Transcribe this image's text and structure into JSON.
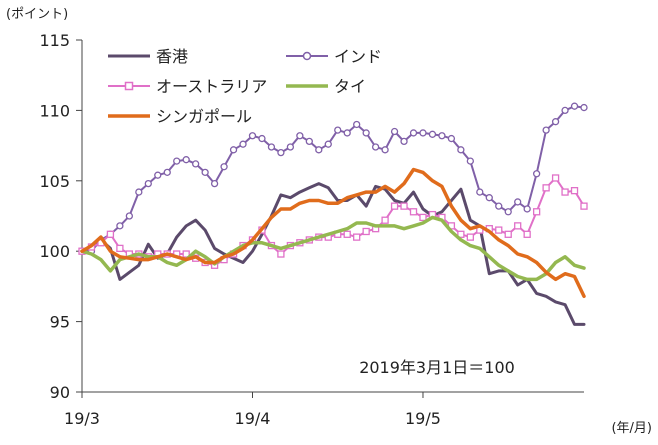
{
  "chart_data": {
    "type": "line",
    "title": "",
    "unit_label": "(ポイント)",
    "x_unit_label": "(年/月)",
    "annotation": "2019年3月1日＝100",
    "xlabel": "",
    "ylabel": "",
    "ylim": [
      90,
      115
    ],
    "yticks": [
      90,
      95,
      100,
      105,
      110,
      115
    ],
    "xlim": [
      0,
      53
    ],
    "xticks": [
      {
        "label": "19/3",
        "x": 0
      },
      {
        "label": "19/4",
        "x": 18
      },
      {
        "label": "19/5",
        "x": 36
      }
    ],
    "grid": false,
    "legend": [
      {
        "name": "香港",
        "color": "#5b4a6b",
        "marker": "none"
      },
      {
        "name": "インド",
        "color": "#8060a8",
        "marker": "circle"
      },
      {
        "name": "オーストラリア",
        "color": "#e070c8",
        "marker": "square"
      },
      {
        "name": "タイ",
        "color": "#94b850",
        "marker": "none"
      },
      {
        "name": "シンガポール",
        "color": "#e06c1c",
        "marker": "none"
      }
    ],
    "series": [
      {
        "name": "香港",
        "color": "#5b4a6b",
        "width": 3,
        "marker": "none",
        "values": [
          100,
          100.3,
          100.8,
          100.2,
          98,
          98.5,
          99,
          100.5,
          99.5,
          99.8,
          101,
          101.8,
          102.2,
          101.5,
          100.2,
          99.8,
          99.5,
          99.2,
          100,
          101.2,
          102.5,
          104,
          103.8,
          104.2,
          104.5,
          104.8,
          104.5,
          103.6,
          103.6,
          104,
          103.2,
          104.6,
          104.4,
          103.6,
          103.4,
          104.2,
          103,
          102.5,
          102.8,
          103.6,
          104.4,
          102.2,
          101.8,
          98.4,
          98.6,
          98.6,
          97.6,
          98,
          97,
          96.8,
          96.4,
          96.2,
          94.8,
          94.8
        ]
      },
      {
        "name": "インド",
        "color": "#8060a8",
        "width": 2,
        "marker": "circle",
        "values": [
          100,
          100,
          100.8,
          101.2,
          101.8,
          102.5,
          104.2,
          104.8,
          105.4,
          105.6,
          106.4,
          106.5,
          106.2,
          105.6,
          104.8,
          106,
          107.2,
          107.6,
          108.2,
          108,
          107.4,
          107,
          107.4,
          108.2,
          107.8,
          107.2,
          107.6,
          108.6,
          108.4,
          109,
          108.4,
          107.4,
          107.2,
          108.5,
          107.8,
          108.4,
          108.4,
          108.3,
          108.2,
          108,
          107.2,
          106.4,
          104.2,
          103.8,
          103.2,
          102.8,
          103.5,
          103,
          105.5,
          108.6,
          109.2,
          110,
          110.3,
          110.2
        ]
      },
      {
        "name": "オーストラリア",
        "color": "#e070c8",
        "width": 2,
        "marker": "square",
        "values": [
          100,
          100.3,
          100.6,
          101.2,
          100.2,
          99.8,
          99.8,
          99.6,
          99.8,
          99.8,
          99.8,
          99.8,
          99.5,
          99.2,
          99,
          99.4,
          99.8,
          100.4,
          100.8,
          101.5,
          100.4,
          99.8,
          100.4,
          100.6,
          100.8,
          101,
          101,
          101.2,
          101.2,
          101,
          101.4,
          101.6,
          102.2,
          103.2,
          103.2,
          102.8,
          102.4,
          102.6,
          102.4,
          101.8,
          101.2,
          101,
          101.5,
          101.6,
          101.5,
          101.2,
          101.8,
          101.2,
          102.8,
          104.5,
          105.2,
          104.2,
          104.3,
          103.2
        ]
      },
      {
        "name": "タイ",
        "color": "#94b850",
        "width": 3.5,
        "marker": "none",
        "values": [
          100,
          99.8,
          99.4,
          98.6,
          99.4,
          99.6,
          99.8,
          99.6,
          99.6,
          99.2,
          99,
          99.4,
          100,
          99.6,
          99.1,
          99.6,
          100,
          100.4,
          100.6,
          100.6,
          100.4,
          100.2,
          100.4,
          100.6,
          100.8,
          101,
          101.2,
          101.4,
          101.6,
          102,
          102,
          101.8,
          101.8,
          101.8,
          101.6,
          101.8,
          102,
          102.4,
          102.2,
          101.4,
          100.8,
          100.4,
          100.2,
          99.6,
          99,
          98.6,
          98.2,
          98,
          98,
          98.4,
          99.2,
          99.6,
          99,
          98.8
        ]
      },
      {
        "name": "シンガポール",
        "color": "#e06c1c",
        "width": 3.5,
        "marker": "none",
        "values": [
          100,
          100.4,
          101,
          100,
          99.6,
          99.5,
          99.4,
          99.4,
          99.6,
          99.8,
          99.6,
          99.4,
          99.6,
          99.2,
          99.2,
          99.6,
          99.8,
          100.2,
          100.8,
          101.6,
          102.4,
          103,
          103,
          103.4,
          103.6,
          103.6,
          103.4,
          103.4,
          103.8,
          104,
          104.2,
          104.2,
          104.6,
          104.2,
          104.8,
          105.8,
          105.6,
          105,
          104.6,
          103.2,
          102.2,
          101.6,
          101.8,
          101.4,
          100.8,
          100.4,
          99.8,
          99.6,
          99.2,
          98.5,
          98,
          98.4,
          98.2,
          96.8
        ]
      }
    ]
  }
}
